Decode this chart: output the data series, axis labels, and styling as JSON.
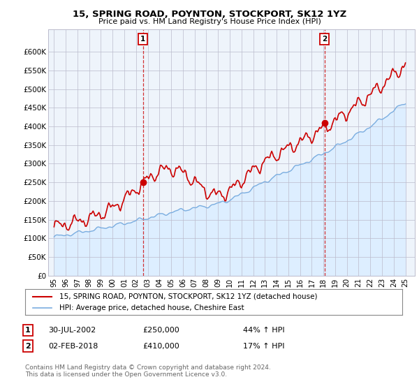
{
  "title": "15, SPRING ROAD, POYNTON, STOCKPORT, SK12 1YZ",
  "subtitle": "Price paid vs. HM Land Registry's House Price Index (HPI)",
  "ylim": [
    0,
    660000
  ],
  "yticks": [
    0,
    50000,
    100000,
    150000,
    200000,
    250000,
    300000,
    350000,
    400000,
    450000,
    500000,
    550000,
    600000
  ],
  "ytick_labels": [
    "£0",
    "£50K",
    "£100K",
    "£150K",
    "£200K",
    "£250K",
    "£300K",
    "£350K",
    "£400K",
    "£450K",
    "£500K",
    "£550K",
    "£600K"
  ],
  "xlim": [
    1994.5,
    2025.8
  ],
  "xtick_years": [
    1995,
    1996,
    1997,
    1998,
    1999,
    2000,
    2001,
    2002,
    2003,
    2004,
    2005,
    2006,
    2007,
    2008,
    2009,
    2010,
    2011,
    2012,
    2013,
    2014,
    2015,
    2016,
    2017,
    2018,
    2019,
    2020,
    2021,
    2022,
    2023,
    2024,
    2025
  ],
  "house_color": "#cc0000",
  "hpi_color": "#7aade0",
  "hpi_fill_color": "#ddeeff",
  "plot_bg_color": "#eef4fb",
  "marker1_date": 2002.58,
  "marker1_price": 250000,
  "marker2_date": 2018.08,
  "marker2_price": 410000,
  "legend_house": "15, SPRING ROAD, POYNTON, STOCKPORT, SK12 1YZ (detached house)",
  "legend_hpi": "HPI: Average price, detached house, Cheshire East",
  "annotation1_date": "30-JUL-2002",
  "annotation1_price": "£250,000",
  "annotation1_pct": "44% ↑ HPI",
  "annotation2_date": "02-FEB-2018",
  "annotation2_price": "£410,000",
  "annotation2_pct": "17% ↑ HPI",
  "footnote": "Contains HM Land Registry data © Crown copyright and database right 2024.\nThis data is licensed under the Open Government Licence v3.0.",
  "bg_color": "#ffffff",
  "grid_color": "#bbbbcc"
}
